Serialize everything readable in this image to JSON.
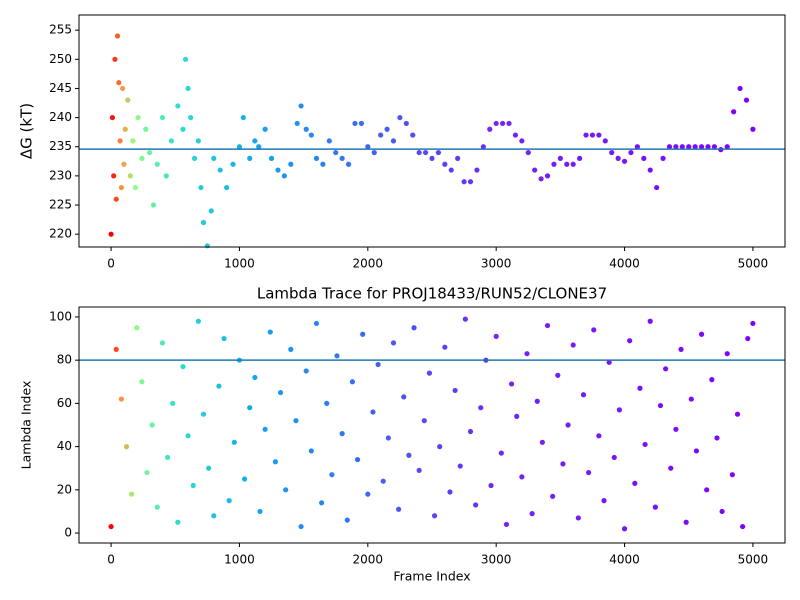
{
  "chart_data": [
    {
      "type": "scatter",
      "ylabel": "ΔG (kT)",
      "x": [
        0,
        10,
        20,
        30,
        40,
        50,
        60,
        70,
        80,
        90,
        100,
        110,
        130,
        150,
        170,
        190,
        210,
        240,
        270,
        300,
        330,
        360,
        400,
        430,
        470,
        520,
        560,
        580,
        600,
        620,
        650,
        680,
        700,
        720,
        750,
        780,
        800,
        850,
        900,
        950,
        1000,
        1030,
        1080,
        1120,
        1150,
        1200,
        1250,
        1300,
        1350,
        1400,
        1450,
        1480,
        1520,
        1560,
        1600,
        1650,
        1700,
        1750,
        1800,
        1850,
        1900,
        1950,
        2000,
        2050,
        2100,
        2150,
        2200,
        2250,
        2300,
        2350,
        2400,
        2450,
        2500,
        2550,
        2600,
        2650,
        2700,
        2750,
        2800,
        2850,
        2900,
        2950,
        3000,
        3050,
        3100,
        3150,
        3200,
        3250,
        3300,
        3350,
        3400,
        3450,
        3500,
        3550,
        3600,
        3650,
        3700,
        3750,
        3800,
        3850,
        3900,
        3950,
        4000,
        4050,
        4100,
        4150,
        4200,
        4250,
        4300,
        4350,
        4400,
        4450,
        4500,
        4550,
        4600,
        4650,
        4700,
        4750,
        4800,
        4850,
        4900,
        4950,
        5000
      ],
      "values": [
        220,
        240,
        230,
        250,
        226,
        254,
        246,
        236,
        228,
        245,
        232,
        238,
        243,
        230,
        236,
        228,
        240,
        233,
        238,
        234,
        225,
        232,
        240,
        230,
        236,
        242,
        238,
        250,
        245,
        240,
        233,
        236,
        228,
        222,
        218,
        224,
        233,
        231,
        228,
        232,
        235,
        240,
        233,
        236,
        235,
        238,
        233,
        231,
        230,
        232,
        239,
        242,
        238,
        237,
        233,
        232,
        236,
        234,
        233,
        232,
        239,
        239,
        235,
        234,
        237,
        238,
        236,
        240,
        239,
        237,
        234,
        234,
        233,
        234,
        232,
        231,
        233,
        229,
        229,
        231,
        235,
        238,
        239,
        239,
        239,
        237,
        236,
        234,
        231,
        229.5,
        230,
        232,
        233,
        232,
        232,
        233,
        237,
        237,
        237,
        236,
        234,
        233,
        232.5,
        234,
        235,
        233,
        231,
        228,
        233,
        235,
        235,
        235,
        235,
        235,
        235,
        235,
        235,
        234.5,
        235,
        241,
        245,
        243,
        238
      ],
      "hline": 234.6,
      "hline_color": "#1f77b4",
      "xlim": [
        -250,
        5250
      ],
      "xticks": [
        0,
        1000,
        2000,
        3000,
        4000,
        5000
      ],
      "ylim": [
        217.8,
        257.6
      ],
      "yticks": [
        220,
        225,
        230,
        235,
        240,
        245,
        250,
        255
      ]
    },
    {
      "type": "scatter",
      "title": "Lambda Trace for PROJ18433/RUN52/CLONE37",
      "xlabel": "Frame Index",
      "ylabel": "Lambda Index",
      "x": [
        0,
        40,
        80,
        120,
        160,
        200,
        240,
        280,
        320,
        360,
        400,
        440,
        480,
        520,
        560,
        600,
        640,
        680,
        720,
        760,
        800,
        840,
        880,
        920,
        960,
        1000,
        1040,
        1080,
        1120,
        1160,
        1200,
        1240,
        1280,
        1320,
        1360,
        1400,
        1440,
        1480,
        1520,
        1560,
        1600,
        1640,
        1680,
        1720,
        1760,
        1800,
        1840,
        1880,
        1920,
        1960,
        2000,
        2040,
        2080,
        2120,
        2160,
        2200,
        2240,
        2280,
        2320,
        2360,
        2400,
        2440,
        2480,
        2520,
        2560,
        2600,
        2640,
        2680,
        2720,
        2760,
        2800,
        2840,
        2880,
        2920,
        2960,
        3000,
        3040,
        3080,
        3120,
        3160,
        3200,
        3240,
        3280,
        3320,
        3360,
        3400,
        3440,
        3480,
        3520,
        3560,
        3600,
        3640,
        3680,
        3720,
        3760,
        3800,
        3840,
        3880,
        3920,
        3960,
        4000,
        4040,
        4080,
        4120,
        4160,
        4200,
        4240,
        4280,
        4320,
        4360,
        4400,
        4440,
        4480,
        4520,
        4560,
        4600,
        4640,
        4680,
        4720,
        4760,
        4800,
        4840,
        4880,
        4920,
        4960,
        5000
      ],
      "values": [
        3,
        85,
        62,
        40,
        18,
        95,
        70,
        28,
        50,
        12,
        88,
        35,
        60,
        5,
        77,
        45,
        22,
        98,
        55,
        30,
        8,
        68,
        90,
        15,
        42,
        80,
        25,
        58,
        72,
        10,
        48,
        93,
        33,
        65,
        20,
        85,
        52,
        3,
        75,
        38,
        97,
        14,
        60,
        27,
        82,
        46,
        6,
        70,
        34,
        92,
        18,
        56,
        78,
        24,
        44,
        88,
        11,
        63,
        36,
        95,
        29,
        52,
        74,
        8,
        40,
        86,
        19,
        66,
        31,
        99,
        47,
        13,
        58,
        80,
        22,
        91,
        37,
        4,
        69,
        54,
        26,
        83,
        9,
        61,
        42,
        96,
        17,
        73,
        32,
        50,
        87,
        7,
        64,
        28,
        94,
        45,
        15,
        79,
        35,
        57,
        2,
        89,
        23,
        67,
        41,
        98,
        12,
        59,
        76,
        30,
        48,
        85,
        5,
        62,
        38,
        92,
        20,
        71,
        44,
        10,
        83,
        27,
        55,
        3,
        90,
        97
      ],
      "hline": 80,
      "hline_color": "#1f77b4",
      "xlim": [
        -250,
        5250
      ],
      "xticks": [
        0,
        1000,
        2000,
        3000,
        4000,
        5000
      ],
      "ylim": [
        -4.6,
        104.6
      ],
      "yticks": [
        0,
        20,
        40,
        60,
        80,
        100
      ]
    }
  ],
  "colorscale": [
    [
      0,
      "#ff0000"
    ],
    [
      80,
      "#ff9040"
    ],
    [
      180,
      "#90ff80"
    ],
    [
      500,
      "#30e0d0"
    ],
    [
      1100,
      "#10a8f0"
    ],
    [
      2200,
      "#4858f0"
    ],
    [
      3000,
      "#7028f4"
    ],
    [
      5000,
      "#8000ff"
    ]
  ]
}
